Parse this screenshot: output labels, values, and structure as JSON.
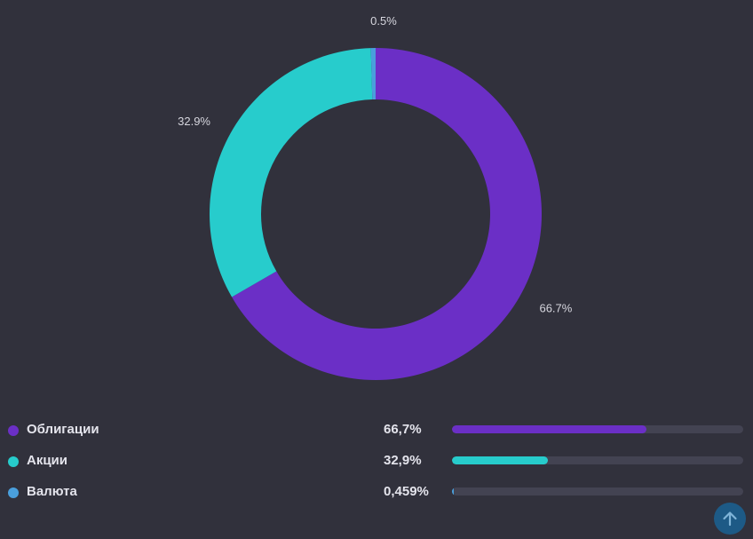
{
  "chart_data": {
    "type": "pie",
    "donut": true,
    "slices": [
      {
        "name": "Облигации",
        "value": 66.7,
        "label": "66.7%",
        "color": "#6b2fc6"
      },
      {
        "name": "Акции",
        "value": 32.9,
        "label": "32.9%",
        "color": "#27cccc"
      },
      {
        "name": "Валюта",
        "value": 0.459,
        "label": "0.5%",
        "color": "#4a9fdc"
      }
    ],
    "start_angle": "top, clockwise"
  },
  "legend": {
    "items": [
      {
        "name": "Облигации",
        "value": "66,7%",
        "percent": 66.7,
        "color": "#6b2fc6"
      },
      {
        "name": "Акции",
        "value": "32,9%",
        "percent": 32.9,
        "color": "#27cccc"
      },
      {
        "name": "Валюта",
        "value": "0,459%",
        "percent": 0.459,
        "color": "#4a9fdc"
      }
    ]
  },
  "scroll_top": {
    "icon": "arrow-up-icon"
  },
  "colors": {
    "background": "#31313c",
    "track": "#434352",
    "scroll_button": "#1d5a86"
  }
}
